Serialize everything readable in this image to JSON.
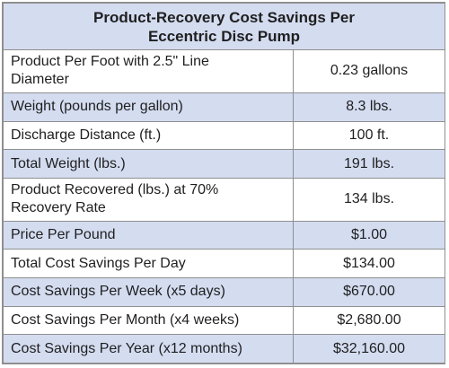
{
  "table": {
    "title_line1": "Product-Recovery Cost Savings Per",
    "title_line2": "Eccentric Disc Pump",
    "rows": [
      {
        "label_line1": "Product Per Foot with 2.5\" Line",
        "label_line2": "Diameter",
        "value": "0.23 gallons"
      },
      {
        "label_line1": "Weight (pounds per gallon)",
        "label_line2": "",
        "value": "8.3 lbs."
      },
      {
        "label_line1": "Discharge Distance (ft.)",
        "label_line2": "",
        "value": "100 ft."
      },
      {
        "label_line1": "Total Weight (lbs.)",
        "label_line2": "",
        "value": "191 lbs."
      },
      {
        "label_line1": "Product Recovered (lbs.) at 70%",
        "label_line2": "Recovery Rate",
        "value": "134 lbs."
      },
      {
        "label_line1": "Price Per Pound",
        "label_line2": "",
        "value": "$1.00"
      },
      {
        "label_line1": "Total Cost Savings Per Day",
        "label_line2": "",
        "value": "$134.00"
      },
      {
        "label_line1": "Cost Savings Per Week (x5 days)",
        "label_line2": "",
        "value": "$670.00"
      },
      {
        "label_line1": "Cost Savings Per Month (x4 weeks)",
        "label_line2": "",
        "value": "$2,680.00"
      },
      {
        "label_line1": "Cost Savings Per Year (x12 months)",
        "label_line2": "",
        "value": "$32,160.00"
      }
    ],
    "colors": {
      "header_fill": "#d4dcf0",
      "shaded_row_fill": "#d4dcf0",
      "border": "#8f8f8f"
    }
  }
}
